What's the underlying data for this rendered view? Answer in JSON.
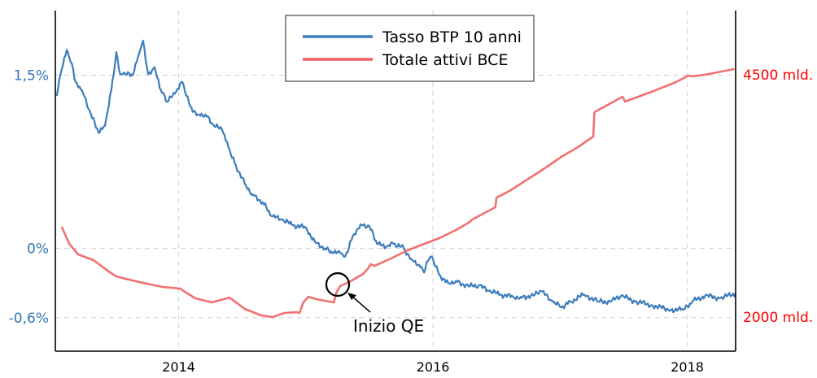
{
  "chart_data": {
    "type": "line",
    "title": "",
    "xlabel": "",
    "xlim": [
      2013.03,
      2018.38
    ],
    "x_ticks": [
      {
        "value": 2014,
        "label": "2014"
      },
      {
        "value": 2016,
        "label": "2016"
      },
      {
        "value": 2018,
        "label": "2018"
      }
    ],
    "y_left": {
      "lim": [
        -0.89,
        2.06
      ],
      "ticks": [
        {
          "value": 1.5,
          "label": "1,5%"
        },
        {
          "value": 0,
          "label": "0%"
        },
        {
          "value": -0.6,
          "label": "-0,6%"
        }
      ],
      "color": "#2e75b6"
    },
    "y_right": {
      "lim": [
        1648,
        5162
      ],
      "ticks": [
        {
          "value": 4500,
          "label": "4500 mld."
        },
        {
          "value": 2000,
          "label": "2000 mld."
        }
      ],
      "color": "#ff0000"
    },
    "grid": true,
    "legend_position": "top-center",
    "series": [
      {
        "name": "Tasso BTP 10 anni",
        "axis": "left",
        "color": "#3c7dbb",
        "x": [
          2013.04,
          2013.08,
          2013.12,
          2013.16,
          2013.19,
          2013.24,
          2013.31,
          2013.37,
          2013.42,
          2013.47,
          2013.51,
          2013.54,
          2013.58,
          2013.64,
          2013.69,
          2013.72,
          2013.76,
          2013.81,
          2013.86,
          2013.91,
          2013.97,
          2014.03,
          2014.09,
          2014.15,
          2014.21,
          2014.28,
          2014.34,
          2014.39,
          2014.44,
          2014.52,
          2014.58,
          2014.66,
          2014.73,
          2014.81,
          2014.9,
          2015.0,
          2015.07,
          2015.15,
          2015.21,
          2015.27,
          2015.31,
          2015.37,
          2015.43,
          2015.5,
          2015.56,
          2015.63,
          2015.69,
          2015.77,
          2015.83,
          2015.89,
          2015.93,
          2015.96,
          2015.99,
          2016.05,
          2016.12,
          2016.18,
          2016.28,
          2016.36,
          2016.44,
          2016.53,
          2016.63,
          2016.69,
          2016.79,
          2016.85,
          2016.94,
          2017.01,
          2017.08,
          2017.19,
          2017.3,
          2017.4,
          2017.48,
          2017.59,
          2017.72,
          2017.85,
          2017.97,
          2018.04,
          2018.14,
          2018.26,
          2018.38
        ],
        "y": [
          1.32,
          1.55,
          1.72,
          1.6,
          1.44,
          1.37,
          1.16,
          1.0,
          1.06,
          1.37,
          1.7,
          1.51,
          1.51,
          1.5,
          1.69,
          1.8,
          1.51,
          1.57,
          1.37,
          1.27,
          1.34,
          1.44,
          1.23,
          1.16,
          1.16,
          1.06,
          1.03,
          0.88,
          0.74,
          0.56,
          0.47,
          0.4,
          0.28,
          0.25,
          0.2,
          0.18,
          0.06,
          0.0,
          -0.04,
          -0.04,
          -0.07,
          0.11,
          0.21,
          0.19,
          0.04,
          0.01,
          0.04,
          0.0,
          -0.09,
          -0.14,
          -0.21,
          -0.11,
          -0.07,
          -0.23,
          -0.3,
          -0.28,
          -0.33,
          -0.32,
          -0.37,
          -0.4,
          -0.42,
          -0.42,
          -0.41,
          -0.37,
          -0.46,
          -0.51,
          -0.46,
          -0.4,
          -0.46,
          -0.46,
          -0.41,
          -0.46,
          -0.49,
          -0.53,
          -0.53,
          -0.46,
          -0.41,
          -0.43,
          -0.39
        ]
      },
      {
        "name": "Totale attivi BCE",
        "axis": "right",
        "color": "#f06060",
        "x": [
          2013.08,
          2013.14,
          2013.21,
          2013.33,
          2013.46,
          2013.51,
          2013.69,
          2013.88,
          2014.01,
          2014.13,
          2014.26,
          2014.4,
          2014.52,
          2014.65,
          2014.74,
          2014.83,
          2014.93,
          2014.95,
          2014.98,
          2015.02,
          2015.08,
          2015.15,
          2015.22,
          2015.24,
          2015.27,
          2015.34,
          2015.45,
          2015.49,
          2015.51,
          2015.54,
          2015.67,
          2015.8,
          2015.93,
          2016.05,
          2016.18,
          2016.28,
          2016.31,
          2016.49,
          2016.5,
          2016.6,
          2016.75,
          2016.85,
          2017.01,
          2017.14,
          2017.26,
          2017.27,
          2017.49,
          2017.51,
          2017.72,
          2017.91,
          2018.01,
          2018.04,
          2018.17,
          2018.37
        ],
        "y": [
          2931,
          2755,
          2646,
          2587,
          2461,
          2419,
          2361,
          2310,
          2294,
          2193,
          2151,
          2201,
          2084,
          2017,
          2000,
          2042,
          2050,
          2042,
          2151,
          2210,
          2185,
          2168,
          2151,
          2252,
          2319,
          2361,
          2445,
          2503,
          2545,
          2528,
          2604,
          2688,
          2755,
          2814,
          2898,
          2973,
          3007,
          3133,
          3233,
          3300,
          3426,
          3510,
          3653,
          3753,
          3862,
          4114,
          4273,
          4223,
          4324,
          4424,
          4492,
          4483,
          4508,
          4559
        ]
      }
    ],
    "annotations": [
      {
        "text": "Inizio QE",
        "x": 2015.25,
        "series": "Totale attivi BCE"
      }
    ]
  }
}
